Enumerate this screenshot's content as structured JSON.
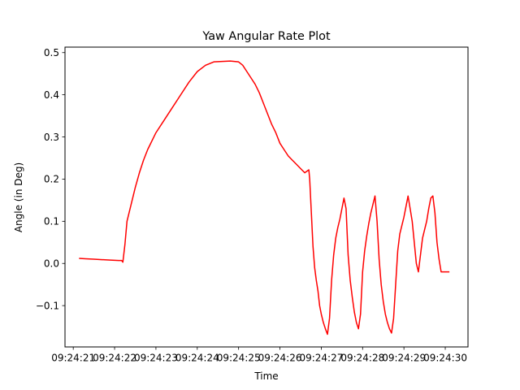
{
  "chart_data": {
    "type": "line",
    "title": "Yaw Angular Rate Plot",
    "xlabel": "Time",
    "ylabel": "Angle (in Deg)",
    "xlim": [
      20.8,
      30.55
    ],
    "ylim": [
      -0.198,
      0.513
    ],
    "x_ticks": [
      {
        "value": 21,
        "label": "09:24:21"
      },
      {
        "value": 22,
        "label": "09:24:22"
      },
      {
        "value": 23,
        "label": "09:24:23"
      },
      {
        "value": 24,
        "label": "09:24:24"
      },
      {
        "value": 25,
        "label": "09:24:25"
      },
      {
        "value": 26,
        "label": "09:24:26"
      },
      {
        "value": 27,
        "label": "09:24:27"
      },
      {
        "value": 28,
        "label": "09:24:28"
      },
      {
        "value": 29,
        "label": "09:24:29"
      },
      {
        "value": 30,
        "label": "09:24:30"
      }
    ],
    "y_ticks": [
      {
        "value": -0.1,
        "label": "−0.1"
      },
      {
        "value": 0.0,
        "label": "0.0"
      },
      {
        "value": 0.1,
        "label": "0.1"
      },
      {
        "value": 0.2,
        "label": "0.2"
      },
      {
        "value": 0.3,
        "label": "0.3"
      },
      {
        "value": 0.4,
        "label": "0.4"
      },
      {
        "value": 0.5,
        "label": "0.5"
      }
    ],
    "grid": false,
    "series": [
      {
        "color": "#ff0000",
        "x": [
          21.14,
          21.3,
          21.5,
          21.7,
          21.9,
          22.1,
          22.17,
          22.2,
          22.25,
          22.3,
          22.4,
          22.5,
          22.6,
          22.7,
          22.8,
          23.0,
          23.2,
          23.4,
          23.6,
          23.8,
          24.0,
          24.2,
          24.4,
          24.6,
          24.8,
          25.0,
          25.1,
          25.2,
          25.3,
          25.4,
          25.5,
          25.6,
          25.7,
          25.8,
          25.9,
          26.0,
          26.1,
          26.2,
          26.3,
          26.4,
          26.5,
          26.6,
          26.7,
          26.72,
          26.76,
          26.8,
          26.84,
          26.88,
          26.92,
          26.96,
          27.0,
          27.05,
          27.1,
          27.15,
          27.2,
          27.25,
          27.3,
          27.35,
          27.4,
          27.45,
          27.5,
          27.55,
          27.6,
          27.65,
          27.7,
          27.75,
          27.8,
          27.85,
          27.9,
          27.95,
          28.0,
          28.05,
          28.1,
          28.15,
          28.2,
          28.25,
          28.3,
          28.35,
          28.4,
          28.45,
          28.5,
          28.55,
          28.6,
          28.65,
          28.7,
          28.75,
          28.8,
          28.85,
          28.9,
          28.95,
          29.0,
          29.05,
          29.1,
          29.15,
          29.2,
          29.25,
          29.3,
          29.35,
          29.4,
          29.45,
          29.5,
          29.55,
          29.6,
          29.65,
          29.7,
          29.75,
          29.8,
          29.85,
          29.9,
          29.95,
          30.0,
          30.05,
          30.1
        ],
        "y": [
          0.012,
          0.011,
          0.01,
          0.009,
          0.008,
          0.007,
          0.007,
          0.003,
          0.045,
          0.1,
          0.14,
          0.18,
          0.215,
          0.245,
          0.27,
          0.31,
          0.34,
          0.37,
          0.4,
          0.43,
          0.455,
          0.47,
          0.478,
          0.479,
          0.48,
          0.478,
          0.47,
          0.455,
          0.44,
          0.425,
          0.405,
          0.38,
          0.355,
          0.33,
          0.31,
          0.285,
          0.27,
          0.255,
          0.245,
          0.235,
          0.225,
          0.215,
          0.222,
          0.2,
          0.12,
          0.04,
          -0.01,
          -0.04,
          -0.065,
          -0.1,
          -0.12,
          -0.14,
          -0.155,
          -0.168,
          -0.13,
          -0.04,
          0.02,
          0.06,
          0.085,
          0.105,
          0.13,
          0.155,
          0.13,
          0.02,
          -0.04,
          -0.08,
          -0.115,
          -0.14,
          -0.155,
          -0.12,
          -0.02,
          0.03,
          0.065,
          0.095,
          0.12,
          0.14,
          0.16,
          0.1,
          0.01,
          -0.05,
          -0.09,
          -0.12,
          -0.14,
          -0.155,
          -0.165,
          -0.13,
          -0.05,
          0.03,
          0.07,
          0.09,
          0.11,
          0.135,
          0.16,
          0.13,
          0.1,
          0.05,
          0.0,
          -0.02,
          0.02,
          0.06,
          0.08,
          0.1,
          0.13,
          0.155,
          0.16,
          0.12,
          0.05,
          0.01,
          -0.02,
          -0.02,
          -0.02,
          -0.02,
          -0.02
        ]
      }
    ]
  }
}
